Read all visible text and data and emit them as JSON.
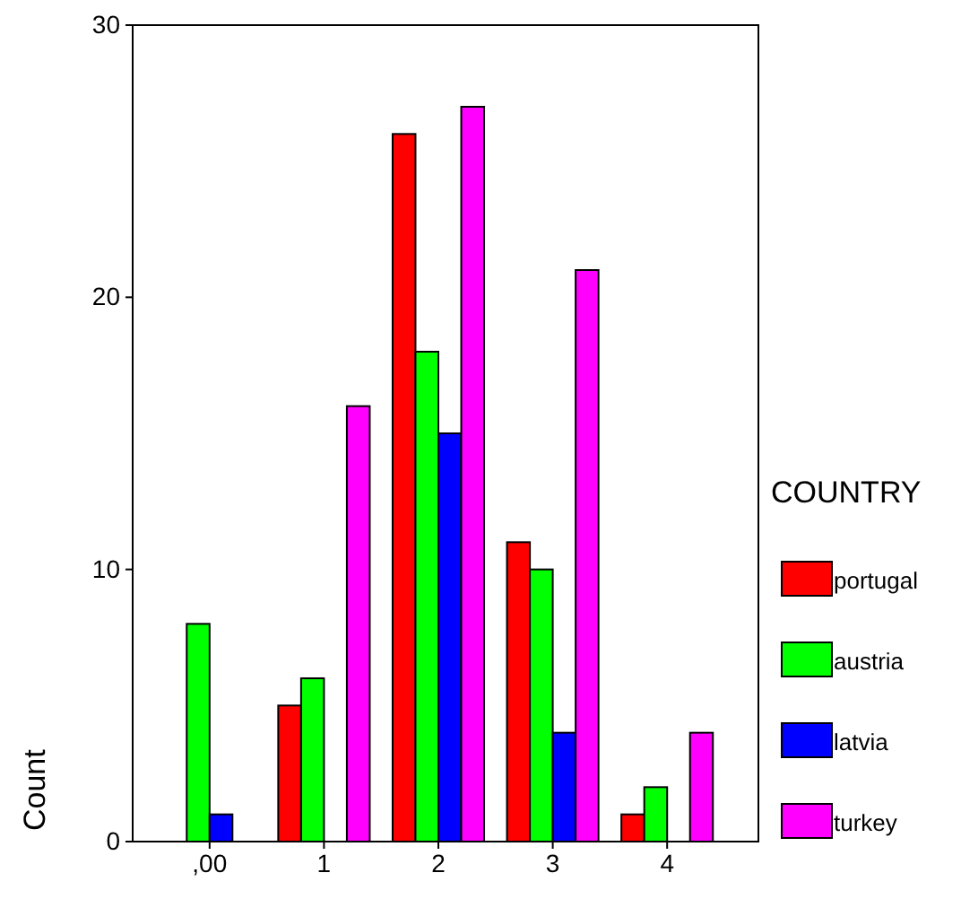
{
  "chart_data": {
    "type": "bar",
    "ylabel": "Count",
    "legend_title": "COUNTRY",
    "categories": [
      ",00",
      "1",
      "2",
      "3",
      "4"
    ],
    "series": [
      {
        "name": "portugal",
        "color": "#ff0000",
        "values": [
          0,
          5,
          26,
          11,
          1
        ]
      },
      {
        "name": "austria",
        "color": "#00ff00",
        "values": [
          8,
          6,
          18,
          10,
          2
        ]
      },
      {
        "name": "latvia",
        "color": "#0000ff",
        "values": [
          1,
          0,
          15,
          4,
          0
        ]
      },
      {
        "name": "turkey",
        "color": "#ff00ff",
        "values": [
          0,
          16,
          27,
          21,
          4
        ]
      }
    ],
    "ylim": [
      0,
      30
    ],
    "yticks": [
      0,
      10,
      20,
      30
    ],
    "grid": false,
    "legend": "right"
  }
}
